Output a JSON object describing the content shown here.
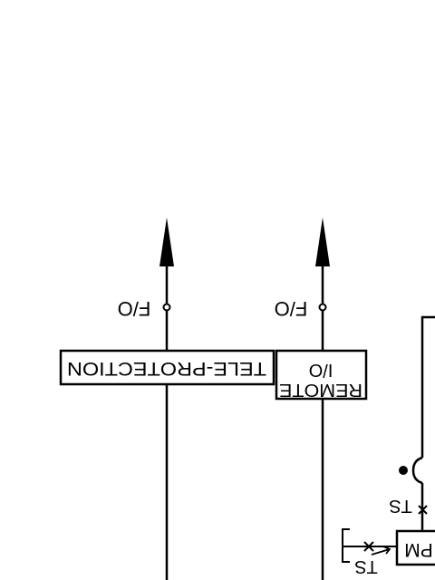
{
  "diagram": {
    "labels": {
      "fo_left": "F/O",
      "fo_right": "F/O",
      "teleprotection": "TELE-PROTECTION",
      "remote_line1": "REMOTE",
      "remote_line2": "I/O",
      "ts_upper": "TS",
      "ts_lower": "TS",
      "pm": "PM"
    },
    "line_color": "#000000",
    "background": "#ffffff",
    "orientation": "rotated-180"
  }
}
